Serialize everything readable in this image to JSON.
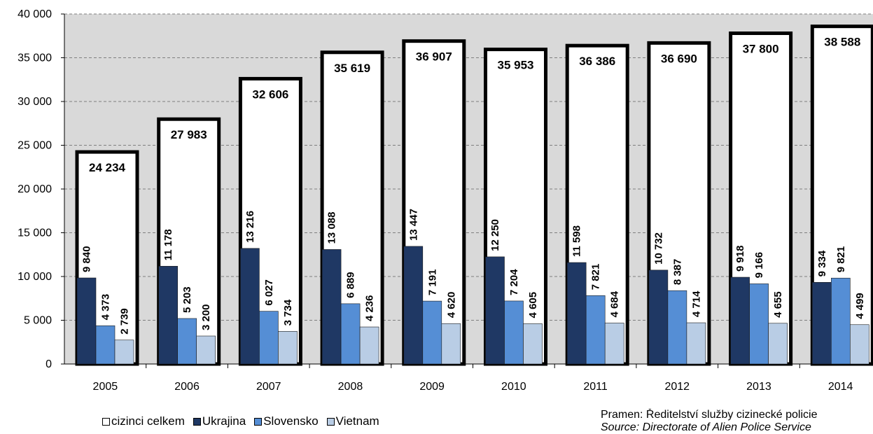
{
  "chart_data": {
    "type": "bar",
    "categories": [
      "2005",
      "2006",
      "2007",
      "2008",
      "2009",
      "2010",
      "2011",
      "2012",
      "2013",
      "2014"
    ],
    "series": [
      {
        "name": "cizinci celkem",
        "color": "#ffffff",
        "values": [
          24234,
          27983,
          32606,
          35619,
          36907,
          35953,
          36386,
          36690,
          37800,
          38588
        ],
        "labels": [
          "24 234",
          "27 983",
          "32 606",
          "35 619",
          "36 907",
          "35 953",
          "36 386",
          "36 690",
          "37 800",
          "38 588"
        ]
      },
      {
        "name": "Ukrajina",
        "color": "#1f3864",
        "values": [
          9840,
          11178,
          13216,
          13088,
          13447,
          12250,
          11598,
          10732,
          9918,
          9334
        ],
        "labels": [
          "9 840",
          "11 178",
          "13 216",
          "13 088",
          "13 447",
          "12 250",
          "11 598",
          "10 732",
          "9 918",
          "9 334"
        ]
      },
      {
        "name": "Slovensko",
        "color": "#558ed5",
        "values": [
          4373,
          5203,
          6027,
          6889,
          7191,
          7204,
          7821,
          8387,
          9166,
          9821
        ],
        "labels": [
          "4 373",
          "5 203",
          "6 027",
          "6 889",
          "7 191",
          "7 204",
          "7 821",
          "8 387",
          "9 166",
          "9 821"
        ]
      },
      {
        "name": "Vietnam",
        "color": "#b9cde5",
        "values": [
          2739,
          3200,
          3734,
          4236,
          4620,
          4605,
          4684,
          4714,
          4655,
          4499
        ],
        "labels": [
          "2 739",
          "3 200",
          "3 734",
          "4 236",
          "4 620",
          "4 605",
          "4 684",
          "4 714",
          "4 655",
          "4 499"
        ]
      }
    ],
    "ylim": [
      0,
      40000
    ],
    "y_ticks": [
      0,
      5000,
      10000,
      15000,
      20000,
      25000,
      30000,
      35000,
      40000
    ],
    "y_tick_labels": [
      "0",
      "5 000",
      "10 000",
      "15 000",
      "20 000",
      "25 000",
      "30 000",
      "35 000",
      "40 000"
    ],
    "grid": true,
    "plot_background": "#d9d9d9",
    "legend_position": "bottom-left"
  },
  "source": {
    "line1": "Pramen: Ředitelství služby cizinecké policie",
    "line2": "Source: Directorate of Alien Police Service"
  }
}
